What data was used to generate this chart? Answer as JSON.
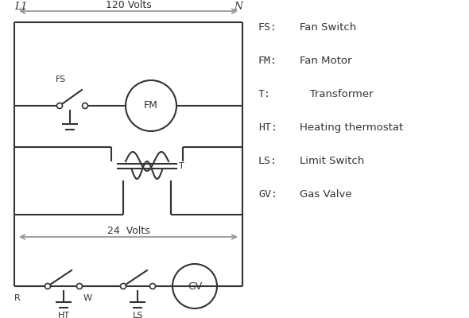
{
  "bg_color": "#ffffff",
  "lc": "#333333",
  "ac": "#999999",
  "legend_items": [
    [
      "FS:",
      "Fan Switch"
    ],
    [
      "FM:",
      "Fan Motor"
    ],
    [
      "T:",
      "   Transformer"
    ],
    [
      "HT:",
      "Heating thermostat"
    ],
    [
      "LS:",
      "Limit Switch"
    ],
    [
      "GV:",
      "Gas Valve"
    ]
  ],
  "label_L1": "L1",
  "label_N": "N",
  "label_120V": "120 Volts",
  "label_24V": "24  Volts",
  "label_T": "T",
  "label_R": "R",
  "label_W": "W",
  "label_HT": "HT",
  "label_LS": "LS",
  "label_FS": "FS",
  "label_FM": "FM",
  "label_GV": "GV"
}
